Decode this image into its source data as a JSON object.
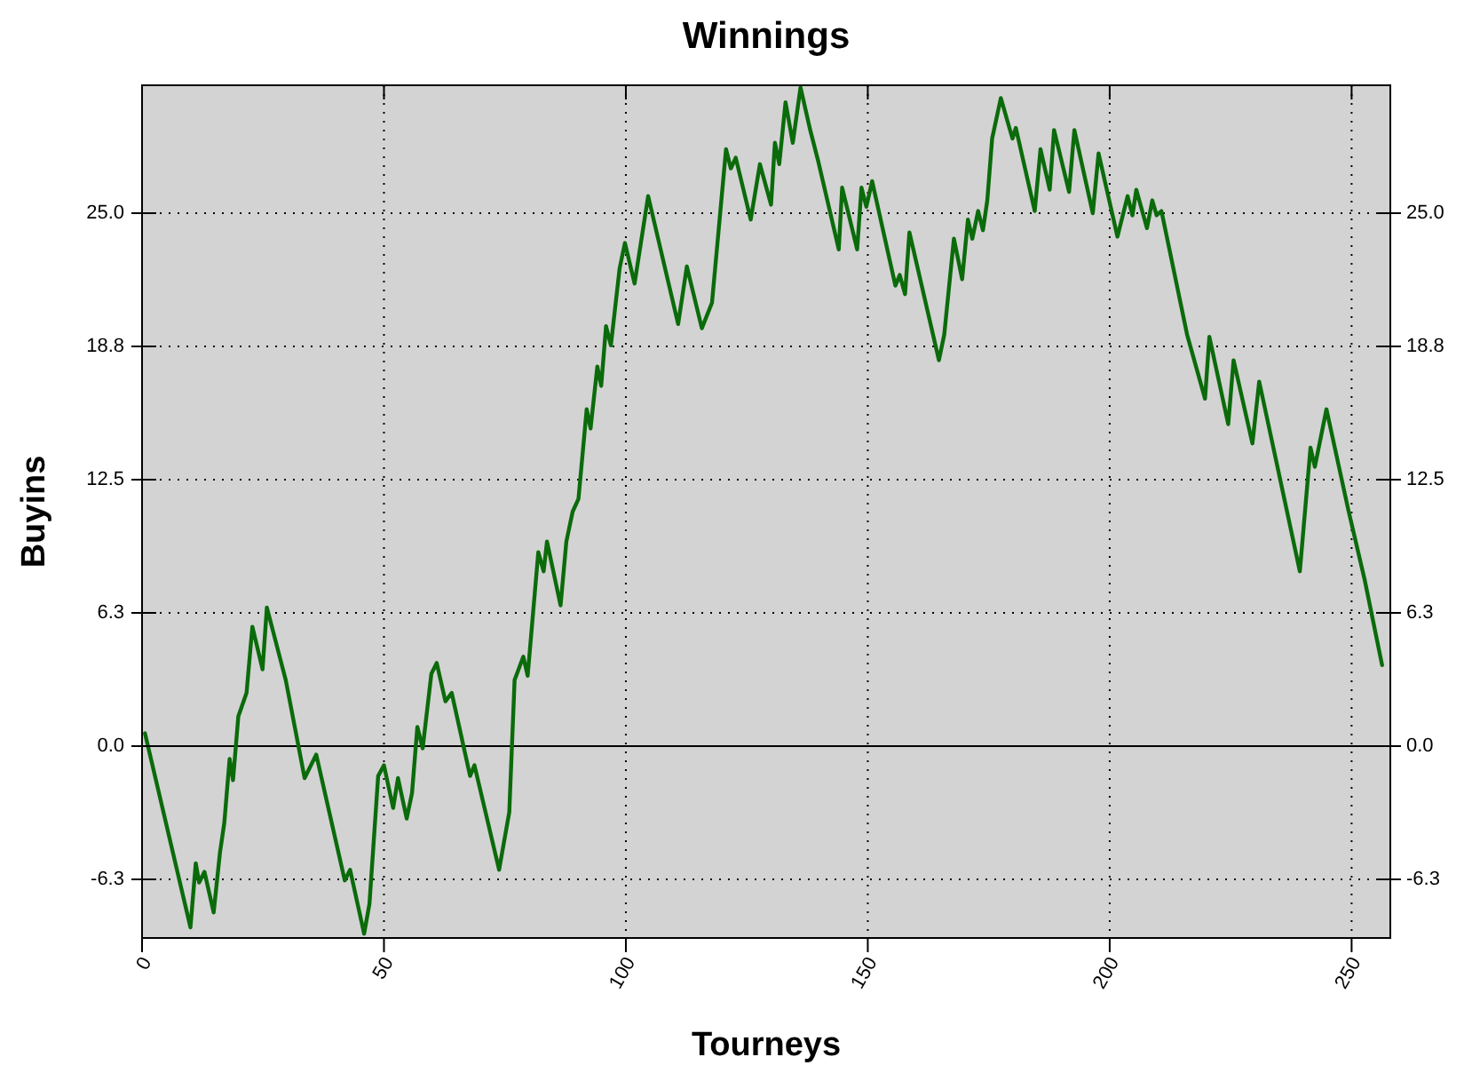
{
  "chart_data": {
    "type": "line",
    "title": "Winnings",
    "xlabel": "Tourneys",
    "ylabel": "Buyins",
    "x": [
      0.6,
      10.0,
      11.1,
      11.8,
      12.9,
      14.8,
      16.1,
      17.0,
      18.1,
      18.8,
      19.9,
      21.6,
      22.8,
      24.9,
      25.8,
      29.7,
      33.6,
      36.0,
      41.9,
      43.0,
      45.9,
      47.0,
      48.8,
      50.0,
      51.9,
      52.9,
      54.7,
      55.8,
      56.9,
      58.0,
      59.8,
      60.9,
      62.7,
      64.0,
      67.8,
      68.7,
      73.8,
      75.9,
      77.0,
      78.8,
      79.7,
      81.9,
      83.0,
      83.7,
      86.5,
      87.7,
      89.0,
      90.2,
      91.9,
      92.7,
      94.1,
      94.9,
      95.9,
      96.9,
      98.7,
      99.8,
      101.8,
      104.6,
      110.8,
      112.6,
      115.7,
      117.8,
      120.7,
      121.7,
      122.7,
      125.8,
      127.7,
      130.0,
      130.8,
      131.7,
      133.0,
      134.5,
      136.1,
      138.1,
      139.8,
      144.0,
      144.7,
      147.8,
      148.7,
      149.7,
      150.9,
      155.7,
      156.6,
      157.7,
      158.6,
      164.7,
      165.8,
      167.8,
      169.5,
      170.7,
      171.6,
      172.8,
      173.8,
      174.7,
      175.7,
      177.5,
      179.9,
      180.6,
      184.5,
      185.7,
      187.6,
      188.5,
      191.6,
      192.7,
      196.5,
      197.7,
      201.6,
      203.7,
      204.7,
      205.5,
      207.7,
      208.8,
      209.7,
      210.7,
      216.0,
      219.7,
      220.6,
      224.5,
      225.6,
      229.5,
      230.9,
      239.3,
      241.5,
      242.4,
      244.8,
      249.3,
      252.7,
      256.3
    ],
    "values": [
      0.6,
      -8.5,
      -5.5,
      -6.4,
      -5.9,
      -7.8,
      -5.0,
      -3.6,
      -0.6,
      -1.6,
      1.4,
      2.5,
      5.6,
      3.6,
      6.5,
      3.1,
      -1.5,
      -0.4,
      -6.3,
      -5.8,
      -8.8,
      -7.4,
      -1.4,
      -0.9,
      -2.9,
      -1.5,
      -3.4,
      -2.2,
      0.9,
      -0.1,
      3.4,
      3.9,
      2.1,
      2.5,
      -1.4,
      -0.9,
      -5.8,
      -3.1,
      3.1,
      4.2,
      3.3,
      9.1,
      8.2,
      9.6,
      6.6,
      9.6,
      11.0,
      11.6,
      15.8,
      14.9,
      17.8,
      16.9,
      19.7,
      18.8,
      22.4,
      23.6,
      21.7,
      25.8,
      19.8,
      22.5,
      19.6,
      20.8,
      28.0,
      27.1,
      27.6,
      24.7,
      27.3,
      25.4,
      28.3,
      27.3,
      30.2,
      28.3,
      30.9,
      28.9,
      27.4,
      23.3,
      26.2,
      23.3,
      26.2,
      25.3,
      26.5,
      21.6,
      22.1,
      21.2,
      24.1,
      18.1,
      19.3,
      23.8,
      21.9,
      24.7,
      23.8,
      25.1,
      24.2,
      25.6,
      28.5,
      30.4,
      28.5,
      29.0,
      25.1,
      28.0,
      26.1,
      28.9,
      26.0,
      28.9,
      25.0,
      27.8,
      23.9,
      25.8,
      24.9,
      26.1,
      24.3,
      25.6,
      24.9,
      25.1,
      19.3,
      16.3,
      19.2,
      15.1,
      18.1,
      14.2,
      17.1,
      8.2,
      14.0,
      13.1,
      15.8,
      11.1,
      7.8,
      3.8
    ],
    "color": "#0b6b0b",
    "xlim": [
      0,
      258
    ],
    "xticks": [
      0,
      50,
      100,
      150,
      200,
      250
    ],
    "ylim": [
      -9,
      31
    ],
    "yticks": [
      {
        "value": -6.25,
        "label": "-6.3"
      },
      {
        "value": 0,
        "label": "0.0"
      },
      {
        "value": 6.25,
        "label": "6.3"
      },
      {
        "value": 12.5,
        "label": "12.5"
      },
      {
        "value": 18.75,
        "label": "18.8"
      },
      {
        "value": 25,
        "label": "25.0"
      }
    ],
    "y2lim": [
      -9,
      31
    ],
    "y2ticks": [
      {
        "value": -6.25,
        "label": "-6.3"
      },
      {
        "value": 0,
        "label": "0.0"
      },
      {
        "value": 6.25,
        "label": "6.3"
      },
      {
        "value": 12.5,
        "label": "12.5"
      },
      {
        "value": 18.75,
        "label": "18.8"
      },
      {
        "value": 25,
        "label": "25.0"
      }
    ],
    "ref_lines": [
      {
        "axis": "y",
        "value": 0,
        "color": "#000000"
      }
    ],
    "grid": true
  }
}
